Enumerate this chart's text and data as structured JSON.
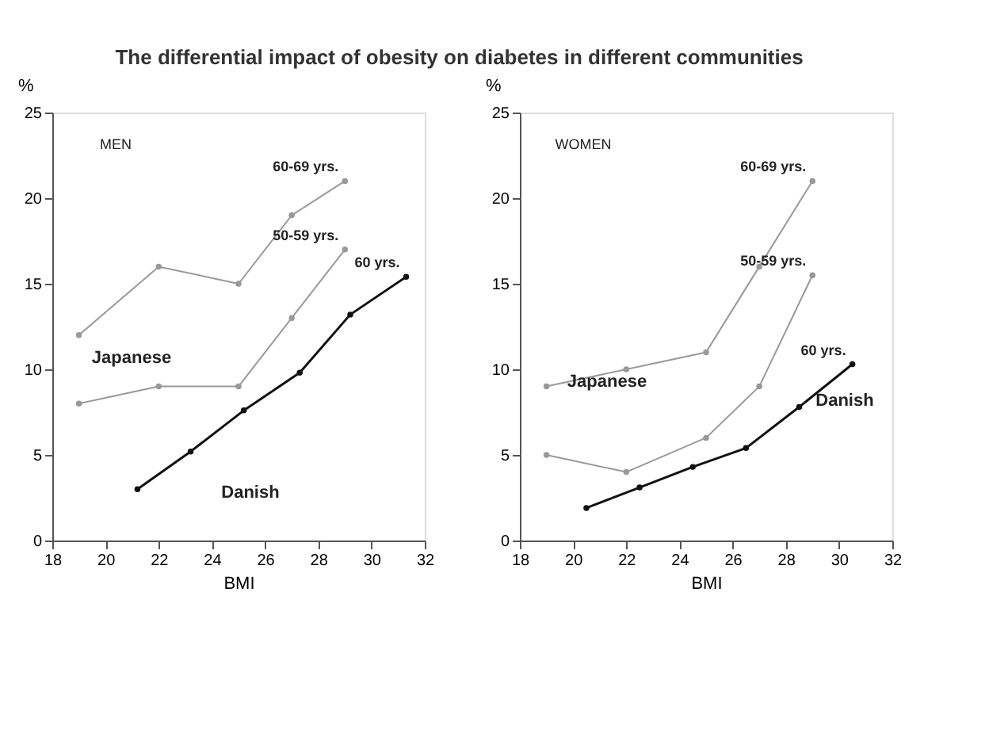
{
  "chart_data": [
    {
      "type": "line",
      "title": "The differential impact of obesity on diabetes in different communities",
      "xlabel": "BMI",
      "ylabel": "%",
      "xlim": [
        18,
        32
      ],
      "xticks": [
        18,
        20,
        22,
        24,
        26,
        28,
        30,
        32
      ],
      "ylim": [
        0,
        25
      ],
      "yticks": [
        0,
        5,
        10,
        15,
        20,
        25
      ],
      "grid": false,
      "marker": "circle",
      "annotations": [
        "MEN",
        "Japanese",
        "Danish"
      ],
      "series": [
        {
          "name": "60-69 yrs.",
          "color": "#999999",
          "x": [
            19,
            22,
            25,
            27,
            29
          ],
          "values": [
            12,
            16,
            15,
            19,
            21
          ]
        },
        {
          "name": "50-59 yrs.",
          "color": "#999999",
          "x": [
            19,
            22,
            25,
            27,
            29
          ],
          "values": [
            8,
            9,
            9,
            13,
            17
          ]
        },
        {
          "name": "60 yrs.",
          "color": "#111111",
          "x": [
            21.2,
            23.2,
            25.2,
            27.3,
            29.2,
            31.3
          ],
          "values": [
            3,
            5.2,
            7.6,
            9.8,
            13.2,
            15.4
          ]
        }
      ]
    },
    {
      "type": "line",
      "xlabel": "BMI",
      "ylabel": "%",
      "xlim": [
        18,
        32
      ],
      "xticks": [
        18,
        20,
        22,
        24,
        26,
        28,
        30,
        32
      ],
      "ylim": [
        0,
        25
      ],
      "yticks": [
        0,
        5,
        10,
        15,
        20,
        25
      ],
      "grid": false,
      "marker": "circle",
      "annotations": [
        "WOMEN",
        "Japanese",
        "Danish"
      ],
      "series": [
        {
          "name": "60-69 yrs.",
          "color": "#999999",
          "x": [
            19,
            22,
            25,
            27,
            29
          ],
          "values": [
            9,
            10,
            11,
            16,
            21
          ]
        },
        {
          "name": "50-59 yrs.",
          "color": "#999999",
          "x": [
            19,
            22,
            25,
            27,
            29
          ],
          "values": [
            5,
            4,
            6,
            9,
            15.5
          ]
        },
        {
          "name": "60 yrs.",
          "color": "#111111",
          "x": [
            20.5,
            22.5,
            24.5,
            26.5,
            28.5,
            30.5
          ],
          "values": [
            1.9,
            3.1,
            4.3,
            5.4,
            7.8,
            10.3
          ]
        }
      ]
    }
  ]
}
